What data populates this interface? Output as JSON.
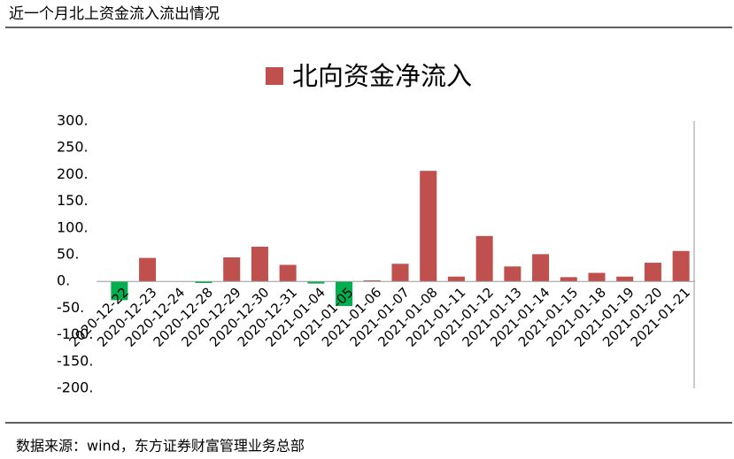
{
  "header": {
    "title": "近一个月北上资金流入流出情况"
  },
  "footer": {
    "source": "数据来源：wind，东方证券财富管理业务总部"
  },
  "chart_data": {
    "type": "bar",
    "categories": [
      "2020-12-22",
      "2020-12-23",
      "2020-12-24",
      "2020-12-28",
      "2020-12-29",
      "2020-12-30",
      "2020-12-31",
      "2021-01-04",
      "2021-01-05",
      "2021-01-06",
      "2021-01-07",
      "2021-01-08",
      "2021-01-11",
      "2021-01-12",
      "2021-01-13",
      "2021-01-14",
      "2021-01-15",
      "2021-01-18",
      "2021-01-19",
      "2021-01-20",
      "2021-01-21"
    ],
    "series": [
      {
        "name": "北向资金净流入",
        "color": "#c0504d",
        "negative_color": "#00b050",
        "values": [
          -35,
          44,
          0,
          -3,
          45,
          65,
          31,
          -4,
          -46,
          2,
          33,
          207,
          9,
          85,
          28,
          51,
          8,
          16,
          9,
          35,
          57
        ]
      }
    ],
    "ylim": [
      -200,
      300
    ],
    "yticks": [
      {
        "value": -200,
        "label": "-200."
      },
      {
        "value": -150,
        "label": "-150."
      },
      {
        "value": -100,
        "label": "-100."
      },
      {
        "value": -50,
        "label": "-50."
      },
      {
        "value": 0,
        "label": "0."
      },
      {
        "value": 50,
        "label": "50."
      },
      {
        "value": 100,
        "label": "100."
      },
      {
        "value": 150,
        "label": "150."
      },
      {
        "value": 200,
        "label": "200."
      },
      {
        "value": 250,
        "label": "250."
      },
      {
        "value": 300,
        "label": "300."
      }
    ],
    "legend": "top"
  }
}
